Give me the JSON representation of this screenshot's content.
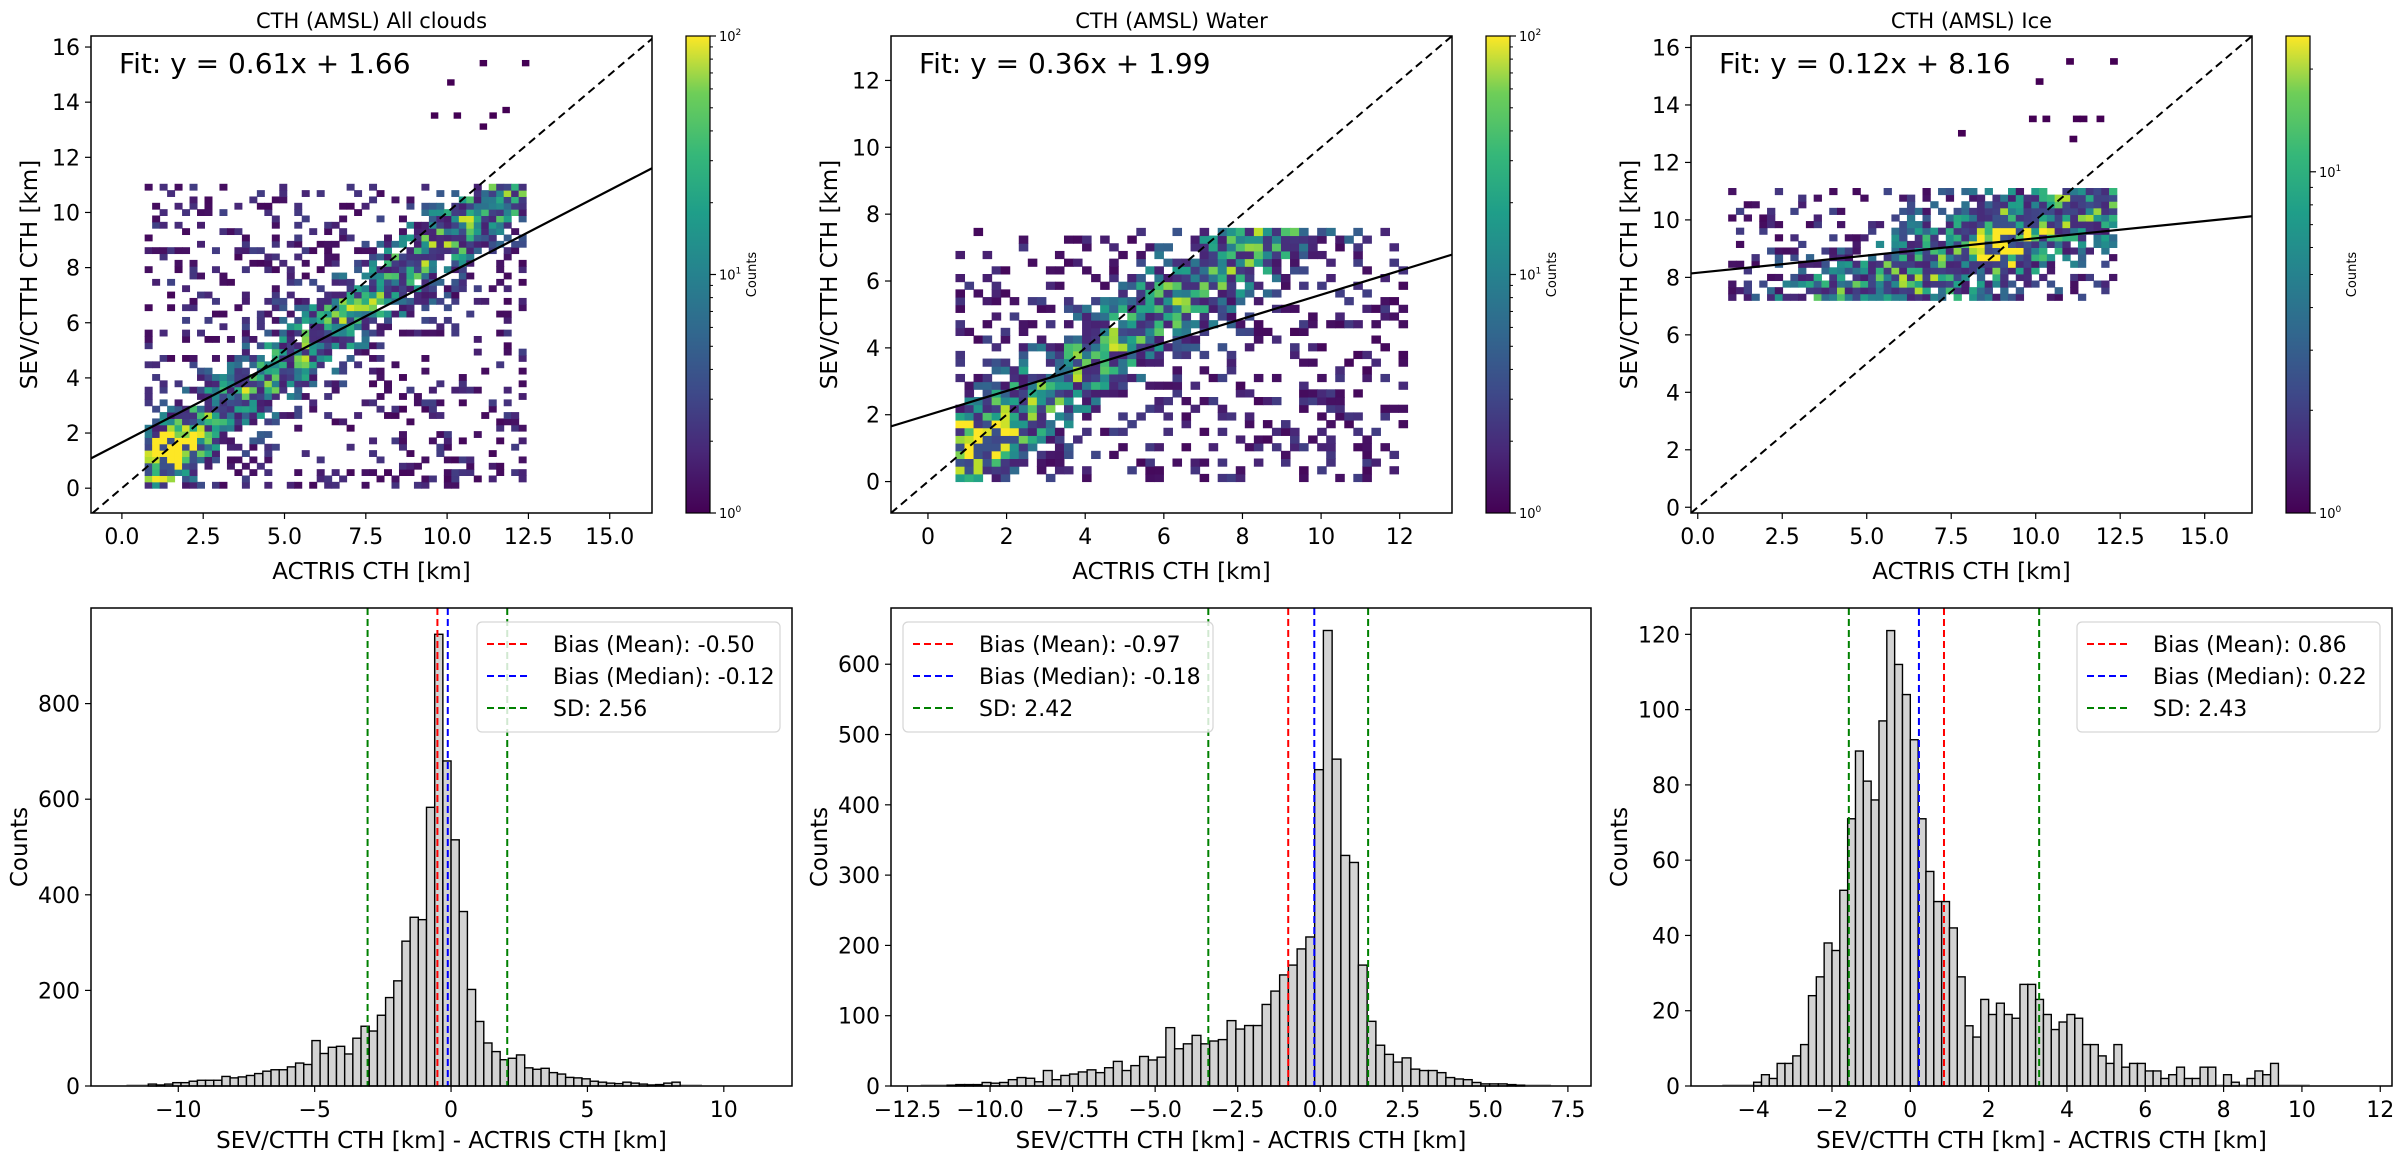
{
  "chart_data": [
    {
      "type": "heatmap",
      "title": "CTH (AMSL) All clouds",
      "xlabel": "ACTRIS CTH [km]",
      "ylabel": "SEV/CTTH CTH [km]",
      "xlim": [
        -0.95,
        16.3
      ],
      "ylim": [
        -0.9,
        16.4
      ],
      "xticks": [
        0.0,
        2.5,
        5.0,
        7.5,
        10.0,
        12.5,
        15.0
      ],
      "xtick_labels": [
        "0.0",
        "2.5",
        "5.0",
        "7.5",
        "10.0",
        "12.5",
        "15.0"
      ],
      "yticks": [
        0,
        2,
        4,
        6,
        8,
        10,
        12,
        14,
        16
      ],
      "ytick_labels": [
        "0",
        "2",
        "4",
        "6",
        "8",
        "10",
        "12",
        "14",
        "16"
      ],
      "fit_text": "Fit: y = 0.61x + 1.66",
      "fit": {
        "slope": 0.61,
        "intercept": 1.66
      },
      "one_to_one": true,
      "colorbar": {
        "label": "Counts",
        "scale": "log",
        "range": [
          1,
          100
        ],
        "tick_labels": [
          {
            "base": "10",
            "exp": "0"
          },
          {
            "base": "10",
            "exp": "1"
          },
          {
            "base": "10",
            "exp": "2"
          }
        ]
      },
      "density": {
        "x_range": [
          0.7,
          12.3
        ],
        "y_min_rel": 0.0,
        "peak": [
          1.3,
          1.2
        ],
        "y_max": 11.0,
        "ridge_slope": 0.9,
        "seed": 11,
        "outliers": [
          [
            10.0,
            14.6
          ],
          [
            11.0,
            15.3
          ],
          [
            12.3,
            15.3
          ],
          [
            9.5,
            13.4
          ],
          [
            10.2,
            13.4
          ],
          [
            11.3,
            13.4
          ],
          [
            11.7,
            13.6
          ],
          [
            11.0,
            13.0
          ]
        ]
      }
    },
    {
      "type": "heatmap",
      "title": "CTH (AMSL) Water",
      "xlabel": "ACTRIS CTH [km]",
      "ylabel": "SEV/CTTH CTH [km]",
      "xlim": [
        -0.94,
        13.33
      ],
      "ylim": [
        -0.94,
        13.33
      ],
      "xticks": [
        0,
        2,
        4,
        6,
        8,
        10,
        12
      ],
      "xtick_labels": [
        "0",
        "2",
        "4",
        "6",
        "8",
        "10",
        "12"
      ],
      "yticks": [
        0,
        2,
        4,
        6,
        8,
        10,
        12
      ],
      "ytick_labels": [
        "0",
        "2",
        "4",
        "6",
        "8",
        "10",
        "12"
      ],
      "fit_text": "Fit: y = 0.36x + 1.99",
      "fit": {
        "slope": 0.36,
        "intercept": 1.99
      },
      "one_to_one": true,
      "colorbar": {
        "label": "Counts",
        "scale": "log",
        "range": [
          1,
          100
        ],
        "tick_labels": [
          {
            "base": "10",
            "exp": "0"
          },
          {
            "base": "10",
            "exp": "1"
          },
          {
            "base": "10",
            "exp": "2"
          }
        ]
      },
      "density": {
        "x_range": [
          0.7,
          12.2
        ],
        "y_min_rel": 0.0,
        "peak": [
          1.2,
          1.1
        ],
        "y_max": 7.4,
        "ridge_slope": 0.85,
        "seed": 23,
        "outliers": []
      }
    },
    {
      "type": "heatmap",
      "title": "CTH (AMSL) Ice",
      "xlabel": "ACTRIS CTH [km]",
      "ylabel": "SEV/CTTH CTH [km]",
      "xlim": [
        -0.2,
        16.4
      ],
      "ylim": [
        -0.2,
        16.4
      ],
      "xticks": [
        0.0,
        2.5,
        5.0,
        7.5,
        10.0,
        12.5,
        15.0
      ],
      "xtick_labels": [
        "0.0",
        "2.5",
        "5.0",
        "7.5",
        "10.0",
        "12.5",
        "15.0"
      ],
      "yticks": [
        0,
        2,
        4,
        6,
        8,
        10,
        12,
        14,
        16
      ],
      "ytick_labels": [
        "0",
        "2",
        "4",
        "6",
        "8",
        "10",
        "12",
        "14",
        "16"
      ],
      "fit_text": "Fit: y = 0.12x + 8.16",
      "fit": {
        "slope": 0.12,
        "intercept": 8.16
      },
      "one_to_one": true,
      "colorbar": {
        "label": "Counts",
        "scale": "log",
        "range": [
          1,
          25
        ],
        "tick_labels": [
          {
            "base": "10",
            "exp": "0"
          },
          {
            "base": "10",
            "exp": "1"
          }
        ]
      },
      "density": {
        "x_range": [
          0.9,
          12.2
        ],
        "y_min_rel": 7.2,
        "peak": [
          9.0,
          9.2
        ],
        "y_max": 11.0,
        "ridge_slope": 0.5,
        "seed": 37,
        "outliers": [
          [
            10.9,
            15.4
          ],
          [
            12.2,
            15.4
          ],
          [
            10.0,
            14.7
          ],
          [
            9.8,
            13.4
          ],
          [
            10.2,
            13.4
          ],
          [
            11.1,
            13.4
          ],
          [
            11.3,
            13.4
          ],
          [
            11.8,
            13.4
          ],
          [
            11.0,
            12.7
          ],
          [
            7.7,
            12.9
          ]
        ]
      }
    },
    {
      "type": "bar",
      "subtype": "histogram",
      "xlabel": "SEV/CTTH CTH [km] - ACTRIS CTH [km]",
      "ylabel": "Counts",
      "xlim": [
        -13.2,
        12.5
      ],
      "ylim": [
        0,
        1000
      ],
      "xticks": [
        -10,
        -5,
        0,
        5,
        10
      ],
      "xtick_labels": [
        "−10",
        "−5",
        "0",
        "5",
        "10"
      ],
      "yticks": [
        0,
        200,
        400,
        600,
        800
      ],
      "ytick_labels": [
        "0",
        "200",
        "400",
        "600",
        "800"
      ],
      "bin_start": -11.1,
      "bin_width": 0.3,
      "values": [
        4,
        2,
        4,
        7,
        7,
        10,
        12,
        12,
        12,
        20,
        17,
        19,
        22,
        26,
        31,
        34,
        34,
        40,
        48,
        45,
        95,
        68,
        81,
        83,
        67,
        100,
        125,
        115,
        148,
        185,
        220,
        303,
        353,
        348,
        583,
        945,
        680,
        515,
        365,
        202,
        135,
        90,
        72,
        55,
        58,
        65,
        38,
        35,
        37,
        28,
        25,
        18,
        17,
        15,
        10,
        8,
        6,
        5,
        8,
        6,
        4,
        2,
        3,
        6,
        8
      ],
      "lines": [
        {
          "label": "Bias (Mean): -0.50",
          "x": -0.5,
          "color": "#ff0000"
        },
        {
          "label": "Bias (Median): -0.12",
          "x": -0.12,
          "color": "#0000ff"
        },
        {
          "label": "SD: 2.56",
          "x_values": [
            -3.06,
            2.06
          ],
          "color": "#008000"
        }
      ],
      "legend_position": "top-right"
    },
    {
      "type": "bar",
      "subtype": "histogram",
      "xlabel": "SEV/CTTH CTH [km] - ACTRIS CTH [km]",
      "ylabel": "Counts",
      "xlim": [
        -13.0,
        8.2
      ],
      "ylim": [
        0,
        680
      ],
      "xticks": [
        -12.5,
        -10.0,
        -7.5,
        -5.0,
        -2.5,
        0.0,
        2.5,
        5.0,
        7.5
      ],
      "xtick_labels": [
        "−12.5",
        "−10.0",
        "−7.5",
        "−5.0",
        "−2.5",
        "0.0",
        "2.5",
        "5.0",
        "7.5"
      ],
      "yticks": [
        0,
        100,
        200,
        300,
        400,
        500,
        600
      ],
      "ytick_labels": [
        "0",
        "100",
        "200",
        "300",
        "400",
        "500",
        "600"
      ],
      "bin_start": -11.3,
      "bin_width": 0.265,
      "values": [
        1,
        2,
        2,
        2,
        5,
        4,
        5,
        9,
        12,
        11,
        6,
        22,
        9,
        15,
        17,
        20,
        23,
        19,
        26,
        35,
        22,
        29,
        42,
        37,
        41,
        83,
        53,
        60,
        72,
        60,
        64,
        66,
        93,
        81,
        86,
        86,
        116,
        135,
        158,
        172,
        195,
        212,
        450,
        648,
        465,
        328,
        318,
        172,
        92,
        58,
        45,
        34,
        40,
        24,
        22,
        22,
        19,
        12,
        10,
        9,
        5,
        3,
        3,
        3,
        2,
        1
      ],
      "lines": [
        {
          "label": "Bias (Mean): -0.97",
          "x": -0.97,
          "color": "#ff0000"
        },
        {
          "label": "Bias (Median): -0.18",
          "x": -0.18,
          "color": "#0000ff"
        },
        {
          "label": "SD: 2.42",
          "x_values": [
            -3.39,
            1.45
          ],
          "color": "#008000"
        }
      ],
      "legend_position": "top-left"
    },
    {
      "type": "bar",
      "subtype": "histogram",
      "xlabel": "SEV/CTTH CTH [km] - ACTRIS CTH [km]",
      "ylabel": "Counts",
      "xlim": [
        -5.6,
        12.3
      ],
      "ylim": [
        0,
        127
      ],
      "xticks": [
        -4,
        -2,
        0,
        2,
        4,
        6,
        8,
        10,
        12
      ],
      "xtick_labels": [
        "−4",
        "−2",
        "0",
        "2",
        "4",
        "6",
        "8",
        "10",
        "12"
      ],
      "yticks": [
        0,
        20,
        40,
        60,
        80,
        100,
        120
      ],
      "ytick_labels": [
        "0",
        "20",
        "40",
        "60",
        "80",
        "100",
        "120"
      ],
      "bin_start": -4.0,
      "bin_width": 0.2,
      "values": [
        1,
        3,
        2,
        6,
        6,
        8,
        11,
        24,
        29,
        38,
        36,
        52,
        71,
        89,
        81,
        76,
        97,
        121,
        112,
        104,
        92,
        71,
        57,
        49,
        49,
        42,
        29,
        16,
        13,
        23,
        19,
        22,
        19,
        18,
        27,
        27,
        23,
        19,
        15,
        17,
        19,
        18,
        11,
        11,
        8,
        6,
        11,
        5,
        6,
        6,
        4,
        4,
        2,
        3,
        5,
        2,
        2,
        5,
        5,
        0,
        3,
        1,
        0,
        2,
        4,
        3,
        6
      ],
      "lines": [
        {
          "label": "Bias (Mean): 0.86",
          "x": 0.86,
          "color": "#ff0000"
        },
        {
          "label": "Bias (Median): 0.22",
          "x": 0.22,
          "color": "#0000ff"
        },
        {
          "label": "SD: 2.43",
          "x_values": [
            -1.57,
            3.29
          ],
          "color": "#008000"
        }
      ],
      "legend_position": "top-right"
    }
  ]
}
